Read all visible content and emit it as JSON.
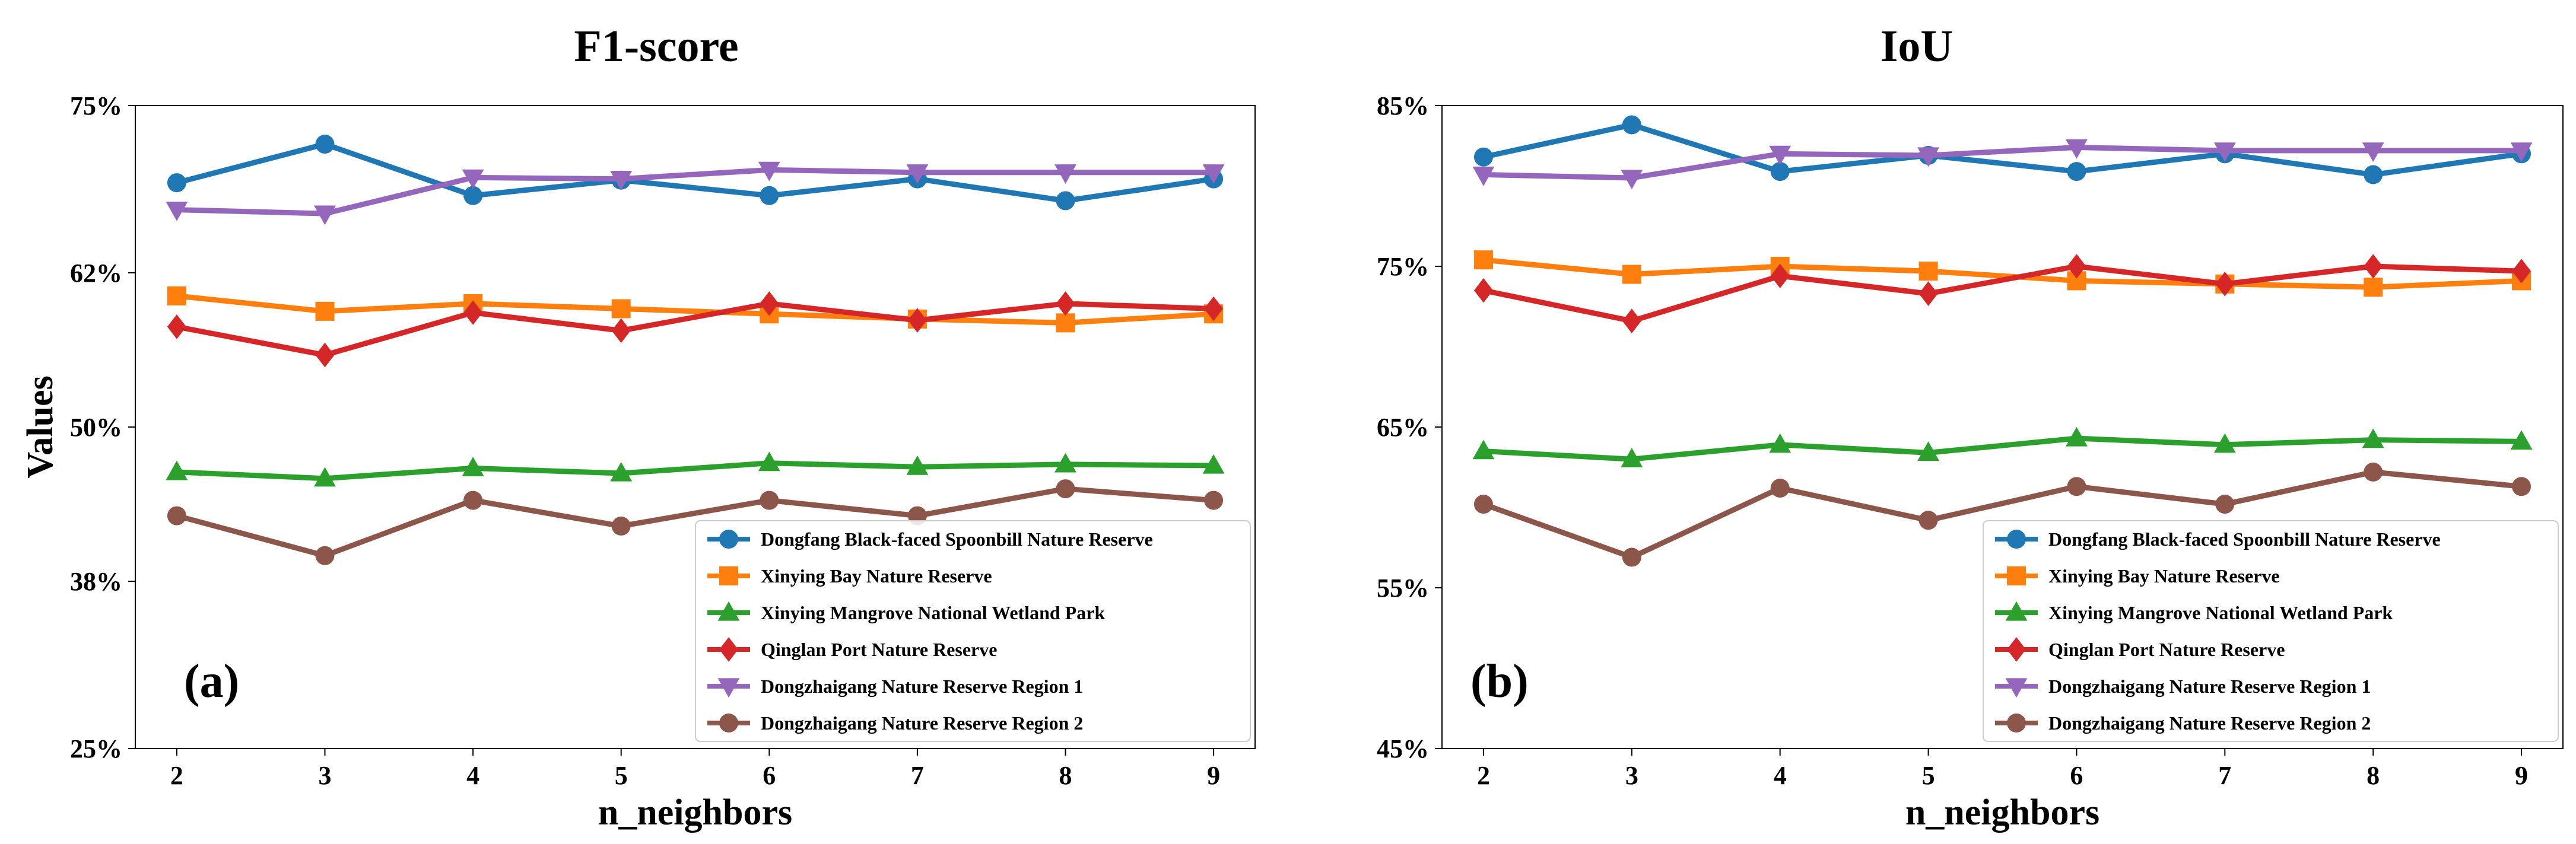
{
  "chart_data": [
    {
      "type": "line",
      "title": "F1-score",
      "panel_label": "(a)",
      "xlabel": "n_neighbors",
      "ylabel": "Values",
      "x": [
        2,
        3,
        4,
        5,
        6,
        7,
        8,
        9
      ],
      "ylim": [
        25,
        75
      ],
      "yticks": [
        25,
        38,
        50,
        62,
        75
      ],
      "ytick_labels": [
        "25%",
        "38%",
        "50%",
        "62%",
        "75%"
      ],
      "grid": false,
      "legend_position": "lower-right",
      "series": [
        {
          "name": "Dongfang Black-faced Spoonbill Nature Reserve",
          "color": "#1f77b4",
          "marker": "circle",
          "values": [
            69.0,
            72.0,
            68.0,
            69.2,
            68.0,
            69.3,
            67.6,
            69.3
          ]
        },
        {
          "name": "Xinying Bay Nature Reserve",
          "color": "#ff7f0e",
          "marker": "square",
          "values": [
            60.2,
            59.0,
            59.6,
            59.2,
            58.8,
            58.4,
            58.1,
            58.8
          ]
        },
        {
          "name": "Xinying Mangrove National Wetland Park",
          "color": "#2ca02c",
          "marker": "triangle-up",
          "values": [
            46.5,
            46.0,
            46.8,
            46.4,
            47.2,
            46.9,
            47.1,
            47.0
          ]
        },
        {
          "name": "Qinglan Port Nature Reserve",
          "color": "#d62728",
          "marker": "diamond",
          "values": [
            57.8,
            55.6,
            58.9,
            57.5,
            59.6,
            58.3,
            59.6,
            59.2
          ]
        },
        {
          "name": "Dongzhaigang Nature Reserve Region 1",
          "color": "#9467bd",
          "marker": "triangle-down",
          "values": [
            66.9,
            66.6,
            69.4,
            69.3,
            70.0,
            69.8,
            69.8,
            69.8
          ]
        },
        {
          "name": "Dongzhaigang Nature Reserve Region 2",
          "color": "#8c564b",
          "marker": "circle",
          "values": [
            43.1,
            40.0,
            44.3,
            42.3,
            44.3,
            43.1,
            45.2,
            44.3
          ]
        }
      ]
    },
    {
      "type": "line",
      "title": "IoU",
      "panel_label": "(b)",
      "xlabel": "n_neighbors",
      "ylabel": "",
      "x": [
        2,
        3,
        4,
        5,
        6,
        7,
        8,
        9
      ],
      "ylim": [
        45,
        85
      ],
      "yticks": [
        45,
        55,
        65,
        75,
        85
      ],
      "ytick_labels": [
        "45%",
        "55%",
        "65%",
        "75%",
        "85%"
      ],
      "grid": false,
      "legend_position": "lower-right",
      "series": [
        {
          "name": "Dongfang Black-faced Spoonbill Nature Reserve",
          "color": "#1f77b4",
          "marker": "circle",
          "values": [
            81.8,
            83.8,
            80.9,
            81.9,
            80.9,
            82.0,
            80.7,
            82.0
          ]
        },
        {
          "name": "Xinying Bay Nature Reserve",
          "color": "#ff7f0e",
          "marker": "square",
          "values": [
            75.4,
            74.5,
            75.0,
            74.7,
            74.1,
            73.9,
            73.7,
            74.1
          ]
        },
        {
          "name": "Xinying Mangrove National Wetland Park",
          "color": "#2ca02c",
          "marker": "triangle-up",
          "values": [
            63.5,
            63.0,
            63.9,
            63.4,
            64.3,
            63.9,
            64.2,
            64.1
          ]
        },
        {
          "name": "Qinglan Port Nature Reserve",
          "color": "#d62728",
          "marker": "diamond",
          "values": [
            73.5,
            71.6,
            74.4,
            73.3,
            75.0,
            73.9,
            75.0,
            74.7
          ]
        },
        {
          "name": "Dongzhaigang Nature Reserve Region 1",
          "color": "#9467bd",
          "marker": "triangle-down",
          "values": [
            80.7,
            80.5,
            82.0,
            81.9,
            82.4,
            82.2,
            82.2,
            82.2
          ]
        },
        {
          "name": "Dongzhaigang Nature Reserve Region 2",
          "color": "#8c564b",
          "marker": "circle",
          "values": [
            60.2,
            56.9,
            61.2,
            59.2,
            61.3,
            60.2,
            62.2,
            61.3
          ]
        }
      ]
    }
  ]
}
